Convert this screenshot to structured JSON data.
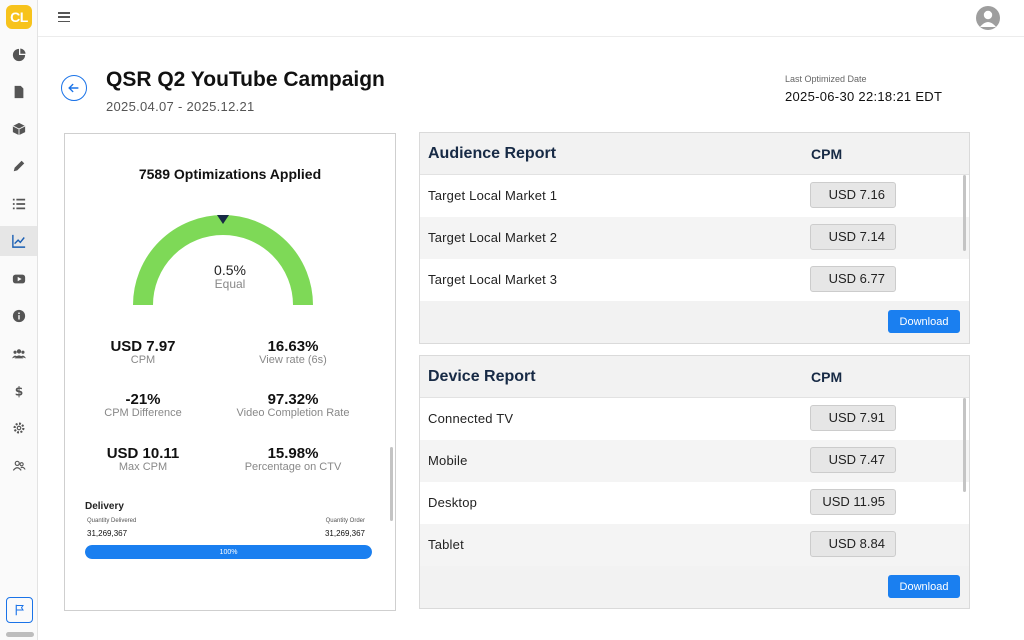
{
  "app": {
    "logo_text": "CL"
  },
  "sidebar": {
    "items": [
      {
        "name": "pie-chart-icon"
      },
      {
        "name": "document-icon"
      },
      {
        "name": "box-icon"
      },
      {
        "name": "pencil-icon"
      },
      {
        "name": "list-icon"
      },
      {
        "name": "trend-chart-icon",
        "active": true
      },
      {
        "name": "youtube-icon"
      },
      {
        "name": "info-icon"
      },
      {
        "name": "users-icon"
      },
      {
        "name": "dollar-icon"
      },
      {
        "name": "gear-icon"
      },
      {
        "name": "team-icon"
      }
    ],
    "bottom_icon": "flag-icon"
  },
  "header": {
    "title": "QSR Q2 YouTube Campaign",
    "date_range": "2025.04.07 - 2025.12.21",
    "last_optimized_label": "Last Optimized Date",
    "last_optimized_value": "2025-06-30 22:18:21 EDT"
  },
  "summary": {
    "optimizations": "7589 Optimizations Applied",
    "gauge_value": "0.5%",
    "gauge_label": "Equal",
    "metrics": [
      {
        "value": "USD 7.97",
        "label": "CPM"
      },
      {
        "value": "16.63%",
        "label": "View rate (6s)"
      },
      {
        "value": "-21%",
        "label": "CPM Difference"
      },
      {
        "value": "97.32%",
        "label": "Video Completion Rate"
      },
      {
        "value": "USD 10.11",
        "label": "Max CPM"
      },
      {
        "value": "15.98%",
        "label": "Percentage on CTV"
      }
    ],
    "delivery": {
      "title": "Delivery",
      "quantity_delivered_label": "Quantity Delivered",
      "quantity_delivered": "31,269,367",
      "quantity_order_label": "Quantity Order",
      "quantity_order": "31,269,367",
      "progress_label": "100%",
      "progress_fraction": 1.0
    }
  },
  "audience_report": {
    "title": "Audience Report",
    "column": "CPM",
    "rows": [
      {
        "label": "Target Local Market 1",
        "cpm": "USD 7.16"
      },
      {
        "label": "Target Local Market 2",
        "cpm": "USD 7.14"
      },
      {
        "label": "Target Local Market 3",
        "cpm": "USD 6.77"
      }
    ],
    "download_label": "Download"
  },
  "device_report": {
    "title": "Device Report",
    "column": "CPM",
    "rows": [
      {
        "label": "Connected TV",
        "cpm": "USD 7.91"
      },
      {
        "label": "Mobile",
        "cpm": "USD 7.47"
      },
      {
        "label": "Desktop",
        "cpm": "USD 11.95"
      },
      {
        "label": "Tablet",
        "cpm": "USD 8.84"
      }
    ],
    "download_label": "Download"
  },
  "colors": {
    "accent": "#1a7ff0",
    "gauge": "#7ed957",
    "logo": "#f7c31c",
    "report_title": "#172a45"
  }
}
